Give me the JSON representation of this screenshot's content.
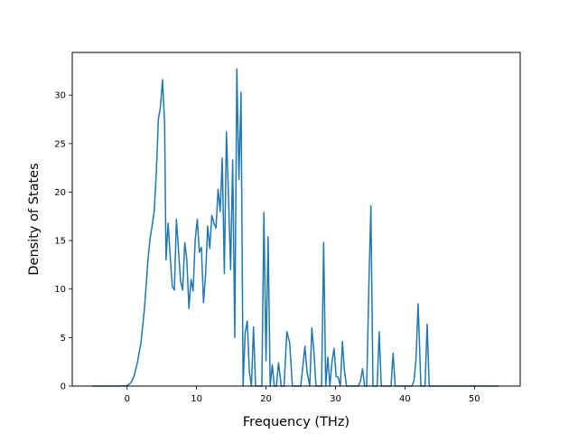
{
  "chart_data": {
    "type": "line",
    "title": "",
    "xlabel": "Frequency (THz)",
    "ylabel": "Density of States",
    "xlim": [
      -7.9,
      56.6
    ],
    "ylim": [
      0,
      34.4
    ],
    "xticks": [
      0,
      10,
      20,
      30,
      40,
      50
    ],
    "yticks": [
      0,
      5,
      10,
      15,
      20,
      25,
      30
    ],
    "grid": false,
    "line_color": "#1f77b4",
    "series": [
      {
        "x": [
          -5.0,
          -1.0,
          0.0,
          0.5,
          1.0,
          1.5,
          2.0,
          2.5,
          3.0,
          3.3,
          3.6,
          3.9,
          4.2,
          4.5,
          4.8,
          5.1,
          5.4,
          5.6,
          5.9,
          6.2,
          6.5,
          6.8,
          7.1,
          7.4,
          7.7,
          8.0,
          8.3,
          8.6,
          8.9,
          9.2,
          9.5,
          9.8,
          10.1,
          10.4,
          10.7,
          11.0,
          11.3,
          11.6,
          11.9,
          12.2,
          12.5,
          12.8,
          13.1,
          13.4,
          13.7,
          14.0,
          14.3,
          14.6,
          14.9,
          15.2,
          15.5,
          15.8,
          16.1,
          16.4,
          16.7,
          17.0,
          17.3,
          17.6,
          17.9,
          18.2,
          18.5,
          19.0,
          19.4,
          19.7,
          20.0,
          20.3,
          20.6,
          20.9,
          21.2,
          21.5,
          21.8,
          22.2,
          22.6,
          23.0,
          23.4,
          23.8,
          24.6,
          25.0,
          25.3,
          25.6,
          25.9,
          26.3,
          26.6,
          26.9,
          27.2,
          27.6,
          28.0,
          28.3,
          28.6,
          28.9,
          29.2,
          29.5,
          29.8,
          30.1,
          30.4,
          30.7,
          31.0,
          31.3,
          31.6,
          31.9,
          32.5,
          33.0,
          33.3,
          33.6,
          33.9,
          34.2,
          34.5,
          34.8,
          35.1,
          35.4,
          35.7,
          36.0,
          36.3,
          36.6,
          37.3,
          37.6,
          38.0,
          38.3,
          38.6,
          39.5,
          40.5,
          41.0,
          41.3,
          41.6,
          41.9,
          42.3,
          42.6,
          42.9,
          43.2,
          43.5,
          45.0,
          53.5
        ],
        "y": [
          0.0,
          0.0,
          0.05,
          0.3,
          1.0,
          2.5,
          4.5,
          8.0,
          13.0,
          15.2,
          16.5,
          18.0,
          22.0,
          27.5,
          28.8,
          31.6,
          27.0,
          13.0,
          16.8,
          13.5,
          10.3,
          9.9,
          17.2,
          14.0,
          10.8,
          9.9,
          14.8,
          13.0,
          8.0,
          11.0,
          9.8,
          15.0,
          17.2,
          13.8,
          14.3,
          8.6,
          11.5,
          16.5,
          14.2,
          17.6,
          16.8,
          16.3,
          20.3,
          18.0,
          23.5,
          11.6,
          26.2,
          19.5,
          12.0,
          23.3,
          5.0,
          32.7,
          21.3,
          30.3,
          0.0,
          5.5,
          6.7,
          1.5,
          0.0,
          6.1,
          0.0,
          0.0,
          0.0,
          17.9,
          2.6,
          15.4,
          0.0,
          2.2,
          0.0,
          0.0,
          2.4,
          0.0,
          0.0,
          5.6,
          4.5,
          0.0,
          0.0,
          0.0,
          2.0,
          4.1,
          1.5,
          0.0,
          6.0,
          3.5,
          0.0,
          0.0,
          0.0,
          14.8,
          0.0,
          3.0,
          0.0,
          2.5,
          3.9,
          1.0,
          0.9,
          0.0,
          4.6,
          1.5,
          0.0,
          0.0,
          0.0,
          0.0,
          0.0,
          0.5,
          1.8,
          0.0,
          0.0,
          10.0,
          18.6,
          0.0,
          0.0,
          0.0,
          5.6,
          0.0,
          0.0,
          0.0,
          0.0,
          3.4,
          0.0,
          0.0,
          0.0,
          0.0,
          0.5,
          2.8,
          8.5,
          0.0,
          0.0,
          0.0,
          6.4,
          0.0,
          0.0,
          0.0
        ]
      }
    ]
  }
}
